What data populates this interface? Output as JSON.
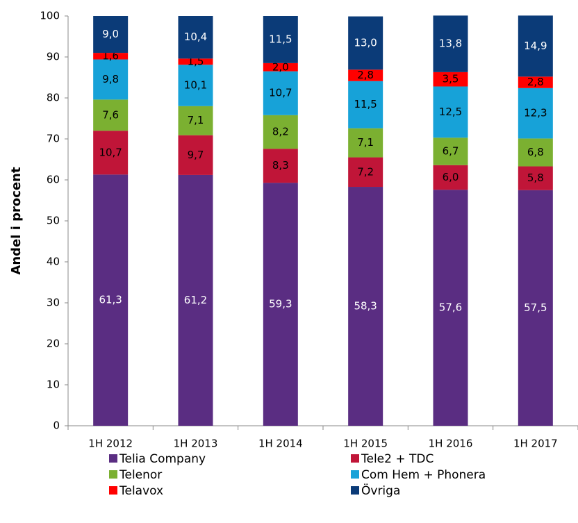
{
  "chart_data": {
    "type": "stacked_bar",
    "y_label": "Andel i procent",
    "categories": [
      "1H 2012",
      "1H 2013",
      "1H 2014",
      "1H 2015",
      "1H 2016",
      "1H 2017"
    ],
    "series": [
      {
        "name": "Telia Company",
        "color": "#5a2d82",
        "label_color": "#ffffff",
        "values": [
          61.3,
          61.2,
          59.3,
          58.3,
          57.6,
          57.5
        ],
        "value_labels": [
          "61,3",
          "61,2",
          "59,3",
          "58,3",
          "57,6",
          "57,5"
        ]
      },
      {
        "name": "Tele2 + TDC",
        "color": "#c01538",
        "label_color": "#000000",
        "values": [
          10.7,
          9.7,
          8.3,
          7.2,
          6.0,
          5.8
        ],
        "value_labels": [
          "10,7",
          "9,7",
          "8,3",
          "7,2",
          "6,0",
          "5,8"
        ]
      },
      {
        "name": "Telenor",
        "color": "#7bb031",
        "label_color": "#000000",
        "values": [
          7.6,
          7.1,
          8.2,
          7.1,
          6.7,
          6.8
        ],
        "value_labels": [
          "7,6",
          "7,1",
          "8,2",
          "7,1",
          "6,7",
          "6,8"
        ]
      },
      {
        "name": "Com Hem + Phonera",
        "color": "#17a2d8",
        "label_color": "#000000",
        "values": [
          9.8,
          10.1,
          10.7,
          11.5,
          12.5,
          12.3
        ],
        "value_labels": [
          "9,8",
          "10,1",
          "10,7",
          "11,5",
          "12,5",
          "12,3"
        ]
      },
      {
        "name": "Telavox",
        "color": "#ff0000",
        "label_color": "#000000",
        "values": [
          1.6,
          1.5,
          2.0,
          2.8,
          3.5,
          2.8
        ],
        "value_labels": [
          "1,6",
          "1,5",
          "2,0",
          "2,8",
          "3,5",
          "2,8"
        ]
      },
      {
        "name": "Övriga",
        "color": "#0b3b78",
        "label_color": "#ffffff",
        "values": [
          9.0,
          10.4,
          11.5,
          13.0,
          13.8,
          14.9
        ],
        "value_labels": [
          "9,0",
          "10,4",
          "11,5",
          "13,0",
          "13,8",
          "14,9"
        ]
      }
    ],
    "ylim": [
      0,
      100
    ],
    "yticks": [
      0,
      10,
      20,
      30,
      40,
      50,
      60,
      70,
      80,
      90,
      100
    ],
    "grid": false
  }
}
